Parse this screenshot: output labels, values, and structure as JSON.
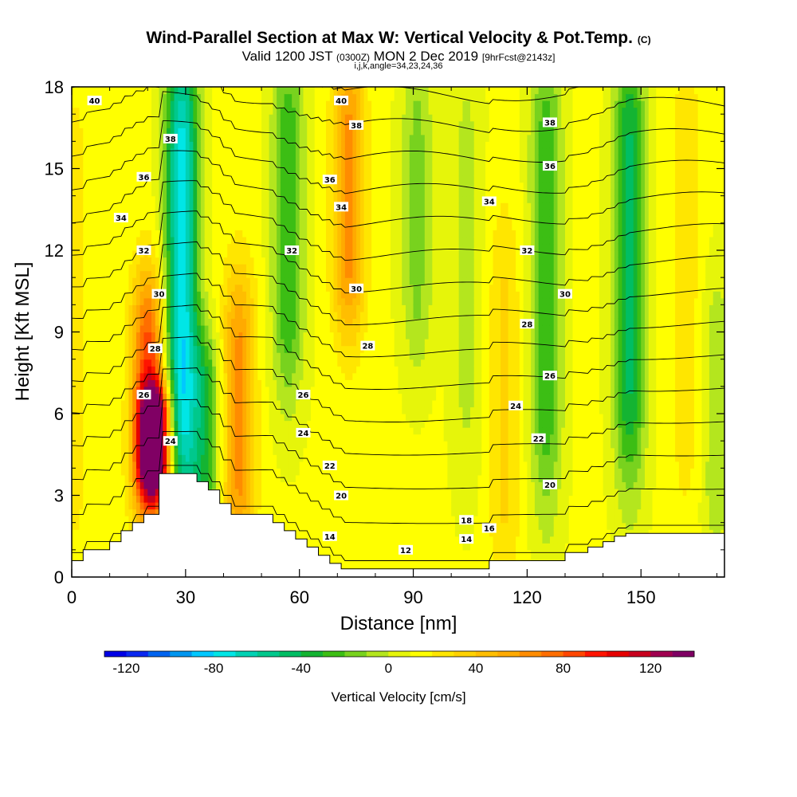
{
  "header": {
    "title": "Wind-Parallel Section at Max W: Vertical Velocity & Pot.Temp.",
    "copyright": "(C)",
    "valid_main": "Valid 1200 JST",
    "valid_utc": "(0300Z)",
    "valid_date": "MON 2 Dec 2019",
    "fcst_info": "[9hrFcst@2143z]",
    "grid_info": "i,j,k,angle=34,23,24,36"
  },
  "chart_data": {
    "type": "heatmap",
    "title": "Wind-Parallel Section at Max W: Vertical Velocity & Pot.Temp.",
    "xlabel": "Distance [nm]",
    "ylabel": "Height [Kft MSL]",
    "xlim": [
      0,
      172
    ],
    "ylim": [
      0,
      18
    ],
    "xticks": [
      "0",
      "30",
      "60",
      "90",
      "120",
      "150"
    ],
    "yticks": [
      "0",
      "3",
      "6",
      "9",
      "12",
      "15",
      "18"
    ],
    "colorbar": {
      "label": "Vertical Velocity [cm/s]",
      "ticks": [
        "-120",
        "-80",
        "-40",
        "0",
        "40",
        "80",
        "120"
      ],
      "levels": [
        -130,
        -120,
        -110,
        -100,
        -90,
        -80,
        -70,
        -60,
        -50,
        -40,
        -30,
        -20,
        -10,
        0,
        10,
        20,
        30,
        40,
        50,
        60,
        70,
        80,
        90,
        100,
        110,
        120,
        130,
        140
      ],
      "colors": [
        "#0000e6",
        "#0a28f0",
        "#0064f0",
        "#0096f0",
        "#00c8ff",
        "#00e6e6",
        "#00d2b4",
        "#00c88c",
        "#00be64",
        "#14b432",
        "#3cbe14",
        "#78d21e",
        "#b4e61e",
        "#e6f50a",
        "#ffff00",
        "#ffe600",
        "#ffd200",
        "#ffbe00",
        "#ffaa00",
        "#ff8c00",
        "#ff6e00",
        "#ff4600",
        "#ff1400",
        "#e60000",
        "#c8001e",
        "#a00050",
        "#800064"
      ]
    },
    "velocity_features": [
      {
        "x": 1,
        "z0": 1,
        "z1": 18,
        "w": 10
      },
      {
        "x": 20,
        "z0": 3,
        "z1": 10,
        "w": 70
      },
      {
        "x": 22,
        "z0": 4,
        "z1": 6,
        "w": 130
      },
      {
        "x": 29,
        "z0": 4,
        "z1": 18,
        "w": -90
      },
      {
        "x": 35,
        "z0": 3,
        "z1": 8,
        "w": -40
      },
      {
        "x": 44,
        "z0": 2,
        "z1": 10,
        "w": 50
      },
      {
        "x": 57,
        "z0": 8,
        "z1": 18,
        "w": -40
      },
      {
        "x": 73,
        "z0": 10,
        "z1": 18,
        "w": 50
      },
      {
        "x": 91,
        "z0": 9,
        "z1": 18,
        "w": -25
      },
      {
        "x": 104,
        "z0": 5,
        "z1": 18,
        "w": -15
      },
      {
        "x": 114,
        "z0": 1,
        "z1": 12,
        "w": 20
      },
      {
        "x": 125,
        "z0": 4,
        "z1": 18,
        "w": -40
      },
      {
        "x": 147,
        "z0": 5,
        "z1": 18,
        "w": -55
      },
      {
        "x": 162,
        "z0": 4,
        "z1": 18,
        "w": 15
      },
      {
        "x": 170,
        "z0": 2,
        "z1": 10,
        "w": -20
      }
    ],
    "terrain": {
      "x": [
        0,
        3,
        3,
        10,
        10,
        13,
        13,
        16,
        16,
        19,
        19,
        23,
        23,
        33,
        33,
        36,
        36,
        39,
        39,
        42,
        42,
        53,
        53,
        56,
        56,
        59,
        59,
        62,
        62,
        65,
        65,
        68,
        68,
        71,
        71,
        110,
        110,
        130,
        130,
        136,
        136,
        140,
        140,
        143,
        143,
        146,
        146,
        172
      ],
      "z": [
        0.6,
        0.6,
        1.0,
        1.0,
        1.3,
        1.3,
        1.7,
        1.7,
        2.0,
        2.0,
        2.3,
        2.3,
        3.8,
        3.8,
        3.5,
        3.5,
        3.2,
        3.2,
        2.7,
        2.7,
        2.3,
        2.3,
        2.0,
        2.0,
        1.7,
        1.7,
        1.4,
        1.4,
        1.1,
        1.1,
        0.8,
        0.8,
        0.5,
        0.5,
        0.3,
        0.3,
        0.6,
        0.6,
        0.9,
        0.9,
        1.1,
        1.1,
        1.3,
        1.3,
        1.5,
        1.5,
        1.6,
        1.6
      ]
    },
    "theta_contours": {
      "levels": [
        12,
        14,
        16,
        18,
        20,
        22,
        24,
        26,
        28,
        30,
        32,
        34,
        36,
        38,
        40
      ],
      "labels": [
        {
          "text": "40",
          "x": 6,
          "z": 17.5
        },
        {
          "text": "38",
          "x": 26,
          "z": 16.1
        },
        {
          "text": "36",
          "x": 19,
          "z": 14.7
        },
        {
          "text": "34",
          "x": 13,
          "z": 13.2
        },
        {
          "text": "32",
          "x": 19,
          "z": 12.0
        },
        {
          "text": "30",
          "x": 23,
          "z": 10.4
        },
        {
          "text": "28",
          "x": 22,
          "z": 8.4
        },
        {
          "text": "26",
          "x": 19,
          "z": 6.7
        },
        {
          "text": "24",
          "x": 26,
          "z": 5.0
        },
        {
          "text": "40",
          "x": 71,
          "z": 17.5
        },
        {
          "text": "38",
          "x": 75,
          "z": 16.6
        },
        {
          "text": "36",
          "x": 68,
          "z": 14.6
        },
        {
          "text": "34",
          "x": 71,
          "z": 13.6
        },
        {
          "text": "32",
          "x": 58,
          "z": 12.0
        },
        {
          "text": "30",
          "x": 75,
          "z": 10.6
        },
        {
          "text": "28",
          "x": 78,
          "z": 8.5
        },
        {
          "text": "26",
          "x": 61,
          "z": 6.7
        },
        {
          "text": "24",
          "x": 61,
          "z": 5.3
        },
        {
          "text": "22",
          "x": 68,
          "z": 4.1
        },
        {
          "text": "20",
          "x": 71,
          "z": 3.0
        },
        {
          "text": "18",
          "x": 104,
          "z": 2.1
        },
        {
          "text": "16",
          "x": 110,
          "z": 1.8
        },
        {
          "text": "14",
          "x": 68,
          "z": 1.5
        },
        {
          "text": "14",
          "x": 104,
          "z": 1.4
        },
        {
          "text": "12",
          "x": 88,
          "z": 1.0
        },
        {
          "text": "38",
          "x": 126,
          "z": 16.7
        },
        {
          "text": "36",
          "x": 126,
          "z": 15.1
        },
        {
          "text": "34",
          "x": 110,
          "z": 13.8
        },
        {
          "text": "32",
          "x": 120,
          "z": 12.0
        },
        {
          "text": "30",
          "x": 130,
          "z": 10.4
        },
        {
          "text": "28",
          "x": 120,
          "z": 9.3
        },
        {
          "text": "26",
          "x": 126,
          "z": 7.4
        },
        {
          "text": "24",
          "x": 117,
          "z": 6.3
        },
        {
          "text": "22",
          "x": 123,
          "z": 5.1
        },
        {
          "text": "20",
          "x": 126,
          "z": 3.4
        }
      ]
    }
  }
}
